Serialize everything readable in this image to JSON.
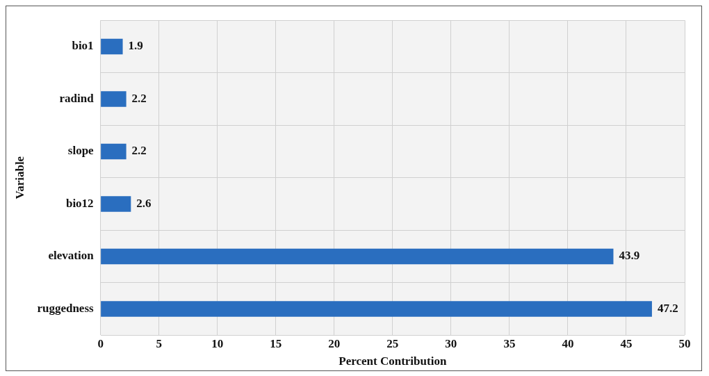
{
  "chart_data": {
    "type": "bar",
    "orientation": "horizontal",
    "xlabel": "Percent Contribution",
    "ylabel": "Variable",
    "categories": [
      "bio1",
      "radind",
      "slope",
      "bio12",
      "elevation",
      "ruggedness"
    ],
    "values": [
      1.9,
      2.2,
      2.2,
      2.6,
      43.9,
      47.2
    ],
    "color": "#2a6ebf",
    "xlim": [
      0,
      50
    ],
    "xticks": [
      0,
      5,
      10,
      15,
      20,
      25,
      30,
      35,
      40,
      45,
      50
    ],
    "grid": true,
    "data_labels": true,
    "legend": false
  }
}
